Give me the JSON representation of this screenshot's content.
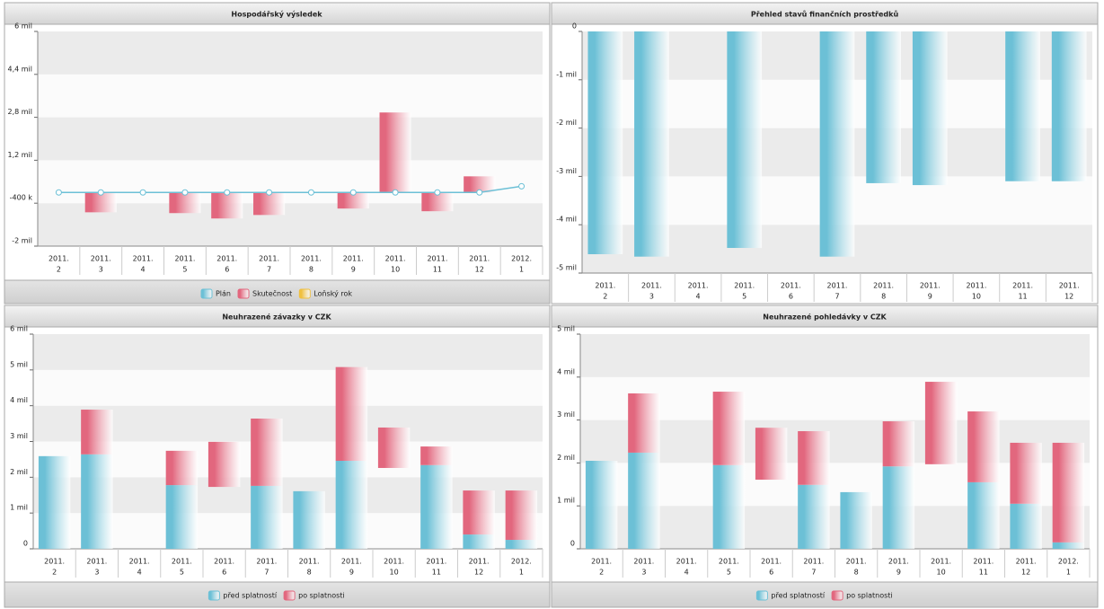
{
  "chart_data": [
    {
      "type": "combo",
      "title": "Hospodářský výsledek",
      "categories": [
        [
          "2011.",
          "2"
        ],
        [
          "2011.",
          "3"
        ],
        [
          "2011.",
          "4"
        ],
        [
          "2011.",
          "5"
        ],
        [
          "2011.",
          "6"
        ],
        [
          "2011.",
          "7"
        ],
        [
          "2011.",
          "8"
        ],
        [
          "2011.",
          "9"
        ],
        [
          "2011.",
          "10"
        ],
        [
          "2011.",
          "11"
        ],
        [
          "2011.",
          "12"
        ],
        [
          "2012.",
          "1"
        ]
      ],
      "ylim": [
        -2000000,
        6000000
      ],
      "yticks": [
        {
          "value": -2000000,
          "label": "-2 mil"
        },
        {
          "value": -400000,
          "label": "-400 k"
        },
        {
          "value": 1200000,
          "label": "1,2 mil"
        },
        {
          "value": 2800000,
          "label": "2,8 mil"
        },
        {
          "value": 4400000,
          "label": "4,4 mil"
        },
        {
          "value": 6000000,
          "label": "6 mil"
        }
      ],
      "grid": true,
      "legend": "bottom",
      "series": [
        {
          "name": "Plán",
          "type": "line",
          "color": "#6cc0d6",
          "values": [
            0,
            0,
            0,
            0,
            0,
            0,
            0,
            0,
            0,
            0,
            0,
            230000
          ]
        },
        {
          "name": "Skutečnost",
          "type": "bar",
          "color": "#e2677e",
          "values": [
            null,
            -740000,
            null,
            -770000,
            -970000,
            -840000,
            null,
            -600000,
            2980000,
            -700000,
            600000,
            null
          ]
        },
        {
          "name": "Loňský rok",
          "type": "bar",
          "color": "#f0c040",
          "values": [
            null,
            null,
            null,
            null,
            null,
            null,
            null,
            null,
            null,
            null,
            null,
            null
          ]
        }
      ]
    },
    {
      "type": "bar",
      "title": "Přehled stavů finančních prostředků",
      "categories": [
        [
          "2011.",
          "2"
        ],
        [
          "2011.",
          "3"
        ],
        [
          "2011.",
          "4"
        ],
        [
          "2011.",
          "5"
        ],
        [
          "2011.",
          "6"
        ],
        [
          "2011.",
          "7"
        ],
        [
          "2011.",
          "8"
        ],
        [
          "2011.",
          "9"
        ],
        [
          "2011.",
          "10"
        ],
        [
          "2011.",
          "11"
        ],
        [
          "2011.",
          "12"
        ]
      ],
      "ylim": [
        -5000000,
        0
      ],
      "yticks": [
        {
          "value": -5000000,
          "label": "-5 mil"
        },
        {
          "value": -4000000,
          "label": "-4 mil"
        },
        {
          "value": -3000000,
          "label": "-3 mil"
        },
        {
          "value": -2000000,
          "label": "-2 mil"
        },
        {
          "value": -1000000,
          "label": "-1 mil"
        },
        0
      ],
      "grid": true,
      "series": [
        {
          "type": "bar",
          "color": "#6cc0d6",
          "values": [
            -4610000,
            -4660000,
            null,
            -4480000,
            null,
            -4660000,
            -3140000,
            -3180000,
            null,
            -3100000,
            -3100000
          ]
        }
      ]
    },
    {
      "type": "stacked_bar",
      "title": "Neuhrazené závazky v CZK",
      "categories": [
        [
          "2011.",
          "2"
        ],
        [
          "2011.",
          "3"
        ],
        [
          "2011.",
          "4"
        ],
        [
          "2011.",
          "5"
        ],
        [
          "2011.",
          "6"
        ],
        [
          "2011.",
          "7"
        ],
        [
          "2011.",
          "8"
        ],
        [
          "2011.",
          "9"
        ],
        [
          "2011.",
          "10"
        ],
        [
          "2011.",
          "11"
        ],
        [
          "2011.",
          "12"
        ],
        [
          "2012.",
          "1"
        ]
      ],
      "ylim": [
        0,
        6000000
      ],
      "yticks": [
        0,
        {
          "value": 1000000,
          "label": "1 mil"
        },
        {
          "value": 2000000,
          "label": "2 mil"
        },
        {
          "value": 3000000,
          "label": "3 mil"
        },
        {
          "value": 4000000,
          "label": "4 mil"
        },
        {
          "value": 5000000,
          "label": "5 mil"
        },
        {
          "value": 6000000,
          "label": "6 mil"
        }
      ],
      "grid": true,
      "legend": "bottom",
      "series": [
        {
          "name": "před splatností",
          "color": "#6cc0d6",
          "values": [
            2590000,
            2640000,
            null,
            1780000,
            1730000,
            1760000,
            1610000,
            2460000,
            2260000,
            2340000,
            400000,
            250000
          ],
          "visible": [
            true,
            true,
            true,
            true,
            false,
            true,
            true,
            true,
            false,
            true,
            true,
            true
          ]
        },
        {
          "name": "po splatnosti",
          "color": "#e2677e",
          "values": [
            null,
            1250000,
            null,
            960000,
            1260000,
            1880000,
            null,
            2620000,
            1130000,
            520000,
            1230000,
            1380000
          ]
        }
      ]
    },
    {
      "type": "stacked_bar",
      "title": "Neuhrazené pohledávky v CZK",
      "categories": [
        [
          "2011.",
          "2"
        ],
        [
          "2011.",
          "3"
        ],
        [
          "2011.",
          "4"
        ],
        [
          "2011.",
          "5"
        ],
        [
          "2011.",
          "6"
        ],
        [
          "2011.",
          "7"
        ],
        [
          "2011.",
          "8"
        ],
        [
          "2011.",
          "9"
        ],
        [
          "2011.",
          "10"
        ],
        [
          "2011.",
          "11"
        ],
        [
          "2011.",
          "12"
        ],
        [
          "2012.",
          "1"
        ]
      ],
      "ylim": [
        0,
        5000000
      ],
      "yticks": [
        0,
        {
          "value": 1000000,
          "label": "1 mil"
        },
        {
          "value": 2000000,
          "label": "2 mil"
        },
        {
          "value": 3000000,
          "label": "3 mil"
        },
        {
          "value": 4000000,
          "label": "4 mil"
        },
        {
          "value": 5000000,
          "label": "5 mil"
        }
      ],
      "grid": true,
      "legend": "bottom",
      "series": [
        {
          "name": "před splatností",
          "color": "#6cc0d6",
          "values": [
            2050000,
            2240000,
            null,
            1950000,
            1610000,
            1490000,
            1320000,
            1920000,
            1970000,
            1550000,
            1050000,
            150000
          ],
          "visible": [
            true,
            true,
            true,
            true,
            false,
            true,
            true,
            true,
            false,
            true,
            true,
            true
          ]
        },
        {
          "name": "po splatnosti",
          "color": "#e2677e",
          "values": [
            null,
            1380000,
            null,
            1710000,
            1210000,
            1250000,
            null,
            1050000,
            1920000,
            1650000,
            1420000,
            2320000
          ]
        }
      ]
    }
  ]
}
